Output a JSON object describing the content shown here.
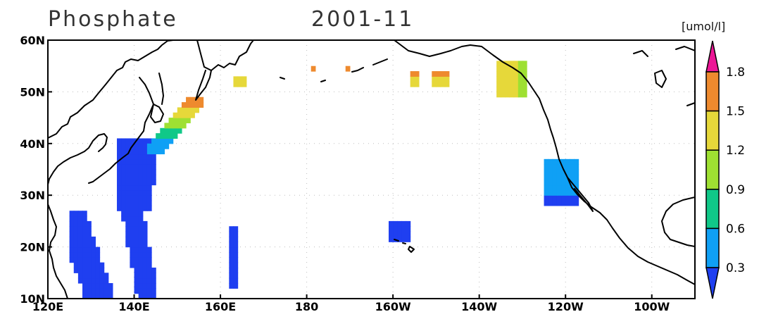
{
  "title": {
    "variable": "Phosphate",
    "date": "2001-11"
  },
  "units": "[umol/l]",
  "map": {
    "lon_range": [
      120,
      270
    ],
    "lat_range": [
      10,
      60
    ],
    "x_ticks": [
      {
        "lon": 120,
        "label": "120E"
      },
      {
        "lon": 140,
        "label": "140E"
      },
      {
        "lon": 160,
        "label": "160E"
      },
      {
        "lon": 180,
        "label": "180"
      },
      {
        "lon": 200,
        "label": "160W"
      },
      {
        "lon": 220,
        "label": "140W"
      },
      {
        "lon": 240,
        "label": "120W"
      },
      {
        "lon": 260,
        "label": "100W"
      }
    ],
    "y_ticks": [
      {
        "lat": 10,
        "label": "10N"
      },
      {
        "lat": 20,
        "label": "20N"
      },
      {
        "lat": 30,
        "label": "30N"
      },
      {
        "lat": 40,
        "label": "40N"
      },
      {
        "lat": 50,
        "label": "50N"
      },
      {
        "lat": 60,
        "label": "60N"
      }
    ],
    "grid": true
  },
  "colorbar": {
    "levels": [
      "0.3",
      "0.6",
      "0.9",
      "1.2",
      "1.5",
      "1.8"
    ],
    "colors": [
      "#1f3ff0",
      "#0fa0f5",
      "#10c888",
      "#9ee032",
      "#e6d83a",
      "#ee8a2e",
      "#ec1696"
    ]
  },
  "chart_data": {
    "type": "heatmap",
    "title": "Phosphate 2001-11",
    "units": "umol/l",
    "regions": [
      {
        "name": "west-pacific-band-1",
        "lon": [
          125,
          137
        ],
        "lat": [
          10,
          27
        ],
        "value_range": [
          0,
          0.3
        ]
      },
      {
        "name": "west-pacific-band-2",
        "lon": [
          136,
          145
        ],
        "lat": [
          10,
          41
        ],
        "value_range": [
          0,
          0.3
        ]
      },
      {
        "name": "kuroshio-extension",
        "lon": [
          143,
          156
        ],
        "lat": [
          38,
          49
        ],
        "value_range": [
          0.3,
          1.8
        ]
      },
      {
        "name": "central-pacific-strip",
        "lon": [
          162,
          164
        ],
        "lat": [
          12,
          24
        ],
        "value_range": [
          0,
          0.3
        ]
      },
      {
        "name": "hawaii",
        "lon": [
          199,
          204
        ],
        "lat": [
          21,
          25
        ],
        "value_range": [
          0,
          0.3
        ]
      },
      {
        "name": "california-current",
        "lon": [
          235,
          243
        ],
        "lat": [
          28,
          37
        ],
        "value_range": [
          0,
          0.6
        ]
      },
      {
        "name": "gulf-of-alaska",
        "lon": [
          224,
          231
        ],
        "lat": [
          49,
          56
        ],
        "value_range": [
          0.9,
          1.5
        ]
      },
      {
        "name": "north-pacific-patches",
        "lon": [
          163,
          215
        ],
        "lat": [
          51,
          55
        ],
        "value_range": [
          1.2,
          1.8
        ]
      }
    ]
  }
}
